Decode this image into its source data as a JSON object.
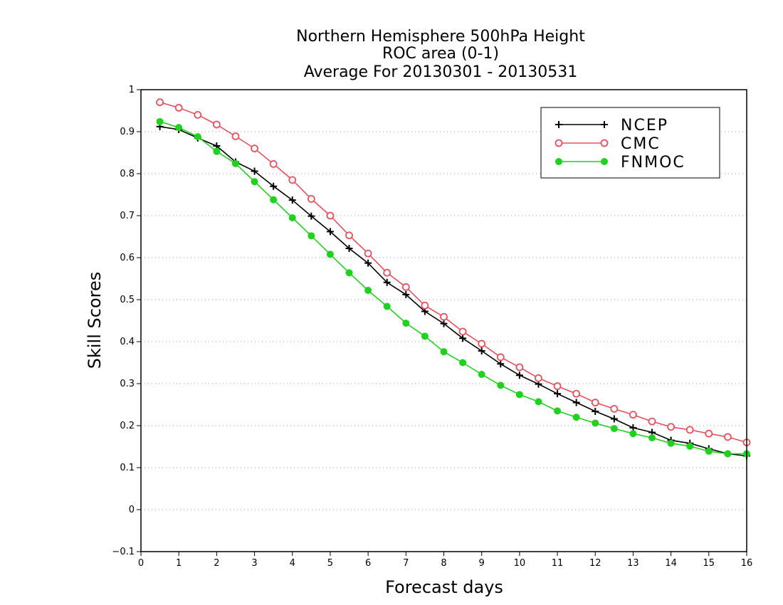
{
  "chart_data": {
    "type": "line",
    "title_lines": [
      "Northern Hemisphere 500hPa Height",
      "ROC area (0-1)",
      "Average For 20130301 - 20130531"
    ],
    "xlabel": "Forecast days",
    "ylabel": "Skill Scores",
    "xlim": [
      0,
      16
    ],
    "ylim": [
      -0.1,
      1
    ],
    "xticks": [
      "0",
      "1",
      "2",
      "3",
      "4",
      "5",
      "6",
      "7",
      "8",
      "9",
      "10",
      "11",
      "12",
      "13",
      "14",
      "15",
      "16"
    ],
    "yticks": [
      "−0.1",
      "0",
      "0.1",
      "0.2",
      "0.3",
      "0.4",
      "0.5",
      "0.6",
      "0.7",
      "0.8",
      "0.9",
      "1"
    ],
    "grid": "horizontal dotted",
    "legend_position": "top-right",
    "x": [
      0.5,
      1,
      1.5,
      2,
      2.5,
      3,
      3.5,
      4,
      4.5,
      5,
      5.5,
      6,
      6.5,
      7,
      7.5,
      8,
      8.5,
      9,
      9.5,
      10,
      10.5,
      11,
      11.5,
      12,
      12.5,
      13,
      13.5,
      14,
      14.5,
      15,
      15.5,
      16
    ],
    "series": [
      {
        "name": "NCEP",
        "color": "#000000",
        "marker": "plus",
        "values": [
          0.912,
          0.905,
          0.885,
          0.866,
          0.828,
          0.806,
          0.77,
          0.737,
          0.699,
          0.662,
          0.622,
          0.587,
          0.541,
          0.512,
          0.472,
          0.443,
          0.408,
          0.378,
          0.347,
          0.32,
          0.299,
          0.276,
          0.255,
          0.234,
          0.216,
          0.195,
          0.184,
          0.165,
          0.158,
          0.145,
          0.133,
          0.128
        ]
      },
      {
        "name": "CMC",
        "color": "#e8505b",
        "marker": "open-circle",
        "values": [
          0.97,
          0.957,
          0.94,
          0.917,
          0.889,
          0.86,
          0.823,
          0.785,
          0.74,
          0.7,
          0.653,
          0.61,
          0.564,
          0.53,
          0.486,
          0.459,
          0.424,
          0.395,
          0.363,
          0.339,
          0.313,
          0.294,
          0.276,
          0.255,
          0.24,
          0.226,
          0.21,
          0.197,
          0.19,
          0.181,
          0.173,
          0.16
        ]
      },
      {
        "name": "FNMOC",
        "color": "#1ed21e",
        "marker": "filled-circle",
        "values": [
          0.924,
          0.91,
          0.888,
          0.853,
          0.824,
          0.781,
          0.738,
          0.695,
          0.652,
          0.608,
          0.564,
          0.522,
          0.484,
          0.444,
          0.413,
          0.376,
          0.35,
          0.322,
          0.296,
          0.274,
          0.257,
          0.235,
          0.22,
          0.206,
          0.193,
          0.181,
          0.171,
          0.158,
          0.151,
          0.139,
          0.133,
          0.133
        ]
      }
    ]
  }
}
